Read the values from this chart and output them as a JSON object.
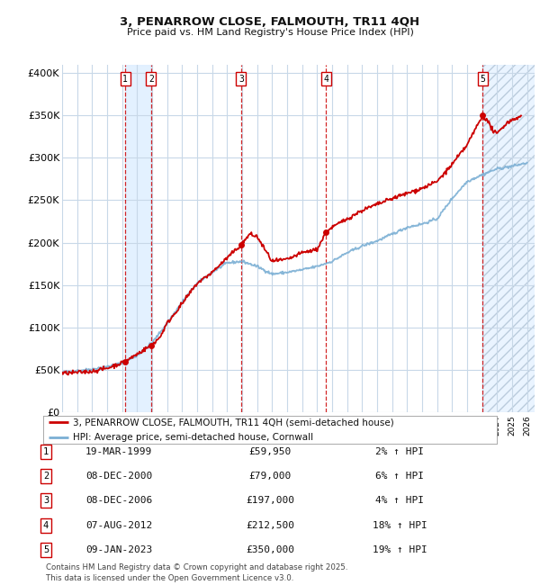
{
  "title": "3, PENARROW CLOSE, FALMOUTH, TR11 4QH",
  "subtitle": "Price paid vs. HM Land Registry's House Price Index (HPI)",
  "hpi_color": "#7bafd4",
  "price_color": "#cc0000",
  "background_chart": "#ffffff",
  "background_fig": "#ffffff",
  "grid_color": "#c8d8e8",
  "sale_dates": [
    1999.21,
    2000.93,
    2006.93,
    2012.6,
    2023.03
  ],
  "sale_prices": [
    59950,
    79000,
    197000,
    212500,
    350000
  ],
  "sale_labels": [
    "1",
    "2",
    "3",
    "4",
    "5"
  ],
  "y_ticks": [
    0,
    50000,
    100000,
    150000,
    200000,
    250000,
    300000,
    350000,
    400000
  ],
  "y_tick_labels": [
    "£0",
    "£50K",
    "£100K",
    "£150K",
    "£200K",
    "£250K",
    "£300K",
    "£350K",
    "£400K"
  ],
  "legend_entries": [
    "3, PENARROW CLOSE, FALMOUTH, TR11 4QH (semi-detached house)",
    "HPI: Average price, semi-detached house, Cornwall"
  ],
  "table_rows": [
    [
      "1",
      "19-MAR-1999",
      "£59,950",
      "2% ↑ HPI"
    ],
    [
      "2",
      "08-DEC-2000",
      "£79,000",
      "6% ↑ HPI"
    ],
    [
      "3",
      "08-DEC-2006",
      "£197,000",
      "4% ↑ HPI"
    ],
    [
      "4",
      "07-AUG-2012",
      "£212,500",
      "18% ↑ HPI"
    ],
    [
      "5",
      "09-JAN-2023",
      "£350,000",
      "19% ↑ HPI"
    ]
  ],
  "footer": "Contains HM Land Registry data © Crown copyright and database right 2025.\nThis data is licensed under the Open Government Licence v3.0."
}
